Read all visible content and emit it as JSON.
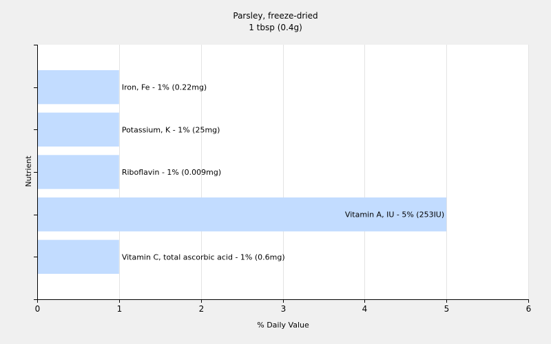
{
  "chart_data": {
    "type": "bar",
    "orientation": "horizontal",
    "title": "Parsley, freeze-dried",
    "subtitle": "1 tbsp (0.4g)",
    "xlabel": "% Daily Value",
    "ylabel": "Nutrient",
    "xlim": [
      0,
      6
    ],
    "xticks": [
      "0",
      "1",
      "2",
      "3",
      "4",
      "5",
      "6"
    ],
    "grid": true,
    "bar_color": "#c2dcff",
    "bars": [
      {
        "label": "Iron, Fe - 1% (0.22mg)",
        "value": 1
      },
      {
        "label": "Potassium, K - 1% (25mg)",
        "value": 1
      },
      {
        "label": "Riboflavin - 1% (0.009mg)",
        "value": 1
      },
      {
        "label": "Vitamin A, IU - 5% (253IU)",
        "value": 5
      },
      {
        "label": "Vitamin C, total ascorbic acid - 1% (0.6mg)",
        "value": 1
      }
    ]
  }
}
